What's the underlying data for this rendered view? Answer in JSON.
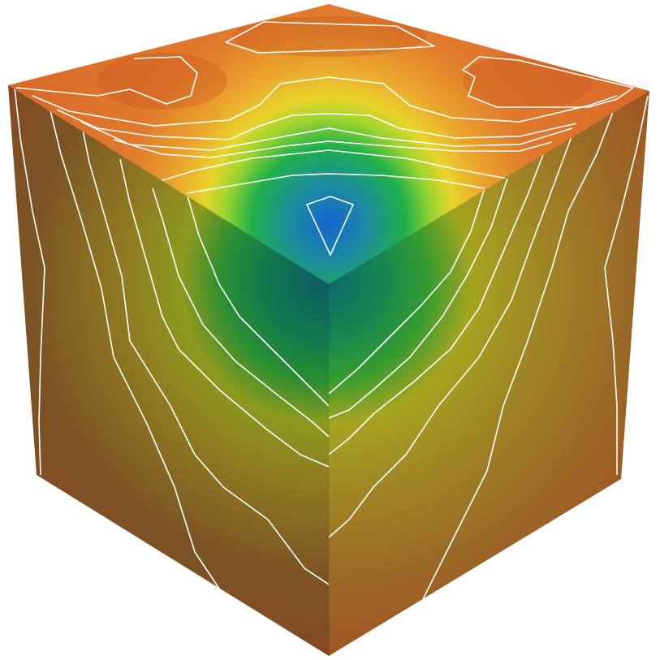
{
  "scene": {
    "subject": "cube",
    "colors": {
      "background": "#ffffff",
      "contour_line": "#ffffff",
      "field_high": "#a8441c",
      "field_mid_high": "#d9702a",
      "field_mid": "#e9d42c",
      "field_mid_low": "#1fb04a",
      "field_low": "#1565d0"
    },
    "faces": [
      "top-face",
      "left-face",
      "right-face"
    ]
  }
}
